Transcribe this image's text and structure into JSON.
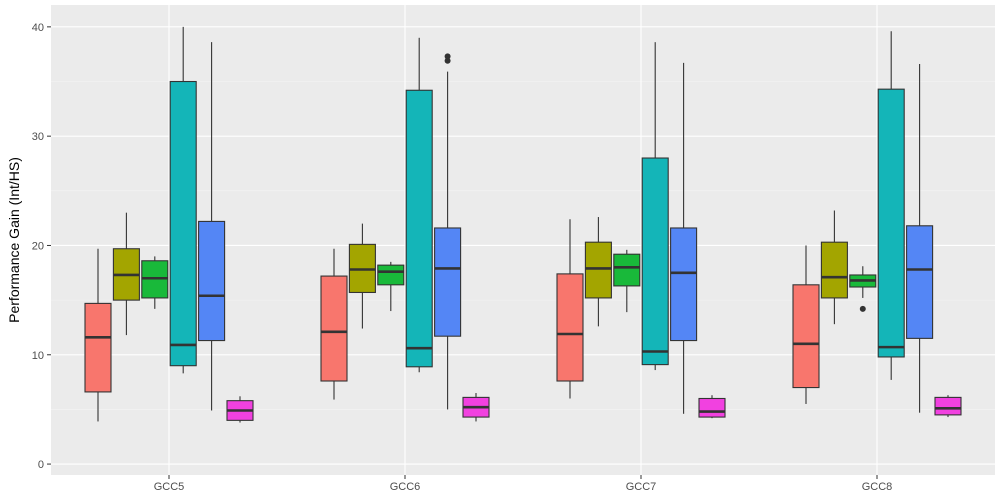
{
  "chart_data": {
    "type": "boxplot",
    "title": "",
    "xlabel": "",
    "ylabel": "Performance Gain (Int/HS)",
    "ylim": [
      -1,
      42
    ],
    "yticks": [
      0,
      10,
      20,
      30,
      40
    ],
    "grid": true,
    "legend": "none",
    "series_colors": [
      "#F8766D",
      "#A3A500",
      "#19B93A",
      "#14B5B8",
      "#5486F5",
      "#F141E0"
    ],
    "categories": [
      "GCC5",
      "GCC6",
      "GCC7",
      "GCC8"
    ],
    "groups": [
      {
        "category": "GCC5",
        "boxes": [
          {
            "min": 3.9,
            "q1": 6.6,
            "median": 11.6,
            "q3": 14.7,
            "max": 19.7,
            "outliers": []
          },
          {
            "min": 11.8,
            "q1": 15.0,
            "median": 17.3,
            "q3": 19.7,
            "max": 23.0,
            "outliers": []
          },
          {
            "min": 14.2,
            "q1": 15.2,
            "median": 17.0,
            "q3": 18.6,
            "max": 19.0,
            "outliers": []
          },
          {
            "min": 8.3,
            "q1": 9.0,
            "median": 10.9,
            "q3": 35.0,
            "max": 40.0,
            "outliers": []
          },
          {
            "min": 4.9,
            "q1": 11.3,
            "median": 15.4,
            "q3": 22.2,
            "max": 38.6,
            "outliers": []
          },
          {
            "min": 3.8,
            "q1": 4.0,
            "median": 4.9,
            "q3": 5.8,
            "max": 6.2,
            "outliers": []
          }
        ]
      },
      {
        "category": "GCC6",
        "boxes": [
          {
            "min": 5.9,
            "q1": 7.6,
            "median": 12.1,
            "q3": 17.2,
            "max": 19.7,
            "outliers": []
          },
          {
            "min": 12.4,
            "q1": 15.7,
            "median": 17.8,
            "q3": 20.1,
            "max": 22.0,
            "outliers": []
          },
          {
            "min": 14.0,
            "q1": 16.4,
            "median": 17.6,
            "q3": 18.2,
            "max": 18.5,
            "outliers": []
          },
          {
            "min": 8.4,
            "q1": 8.9,
            "median": 10.6,
            "q3": 34.2,
            "max": 39.0,
            "outliers": []
          },
          {
            "min": 5.0,
            "q1": 11.7,
            "median": 17.9,
            "q3": 21.6,
            "max": 35.9,
            "outliers": [
              36.9,
              37.3
            ]
          },
          {
            "min": 3.9,
            "q1": 4.3,
            "median": 5.2,
            "q3": 6.1,
            "max": 6.5,
            "outliers": []
          }
        ]
      },
      {
        "category": "GCC7",
        "boxes": [
          {
            "min": 6.0,
            "q1": 7.6,
            "median": 11.9,
            "q3": 17.4,
            "max": 22.4,
            "outliers": []
          },
          {
            "min": 12.6,
            "q1": 15.2,
            "median": 17.9,
            "q3": 20.3,
            "max": 22.6,
            "outliers": []
          },
          {
            "min": 13.9,
            "q1": 16.3,
            "median": 18.0,
            "q3": 19.2,
            "max": 19.6,
            "outliers": []
          },
          {
            "min": 8.6,
            "q1": 9.1,
            "median": 10.3,
            "q3": 28.0,
            "max": 38.6,
            "outliers": []
          },
          {
            "min": 4.6,
            "q1": 11.3,
            "median": 17.5,
            "q3": 21.6,
            "max": 36.7,
            "outliers": []
          },
          {
            "min": 4.2,
            "q1": 4.3,
            "median": 4.8,
            "q3": 6.0,
            "max": 6.3,
            "outliers": []
          }
        ]
      },
      {
        "category": "GCC8",
        "boxes": [
          {
            "min": 5.5,
            "q1": 7.0,
            "median": 11.0,
            "q3": 16.4,
            "max": 20.0,
            "outliers": []
          },
          {
            "min": 12.8,
            "q1": 15.2,
            "median": 17.1,
            "q3": 20.3,
            "max": 23.2,
            "outliers": []
          },
          {
            "min": 15.2,
            "q1": 16.2,
            "median": 16.8,
            "q3": 17.3,
            "max": 18.1,
            "outliers": [
              14.2
            ]
          },
          {
            "min": 7.7,
            "q1": 9.8,
            "median": 10.7,
            "q3": 34.3,
            "max": 39.6,
            "outliers": []
          },
          {
            "min": 4.7,
            "q1": 11.5,
            "median": 17.8,
            "q3": 21.8,
            "max": 36.6,
            "outliers": []
          },
          {
            "min": 4.3,
            "q1": 4.5,
            "median": 5.1,
            "q3": 6.1,
            "max": 6.3,
            "outliers": []
          }
        ]
      }
    ]
  }
}
